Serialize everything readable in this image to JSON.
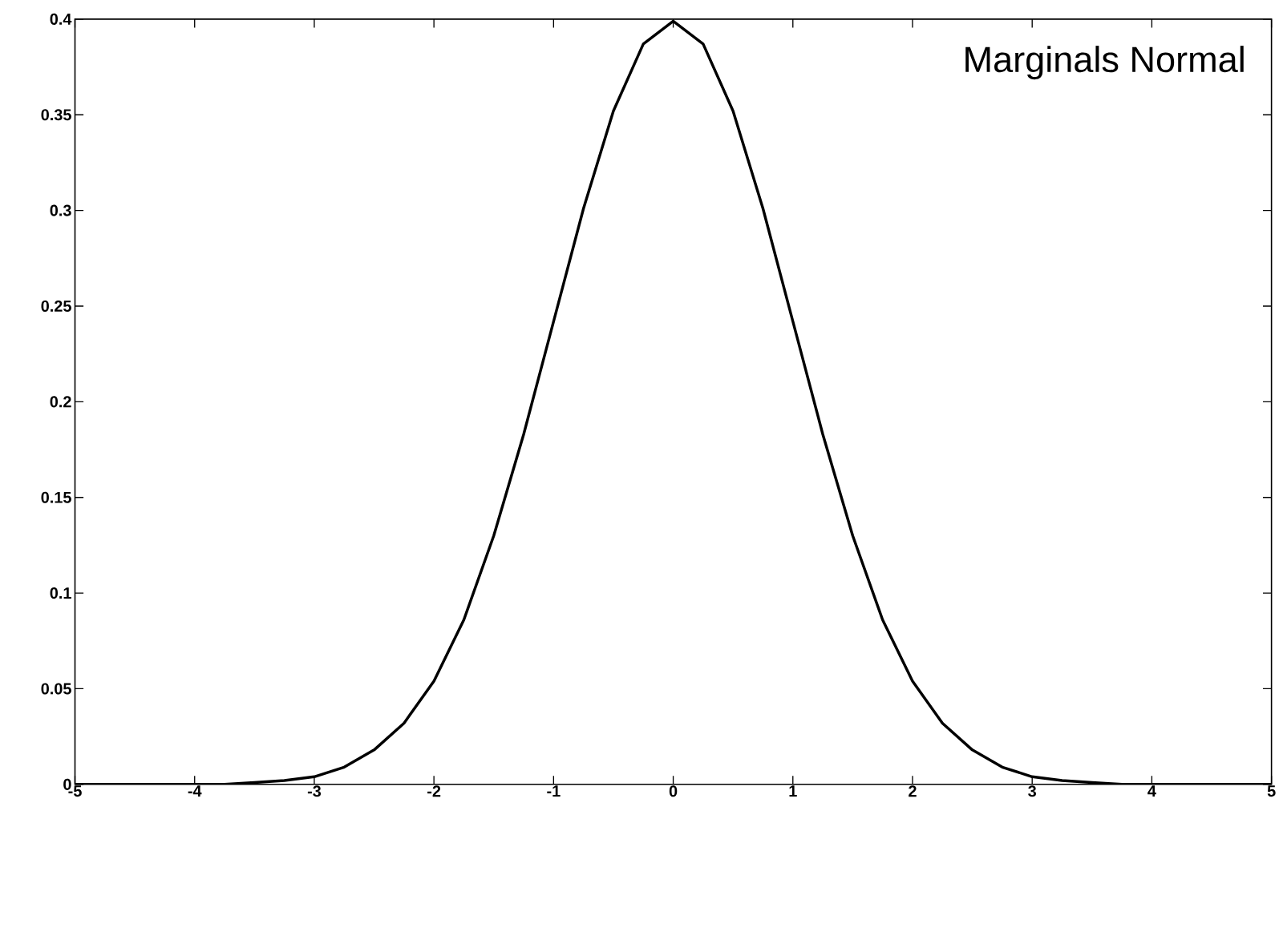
{
  "chart_data": {
    "type": "line",
    "x": [
      -5,
      -4.5,
      -4,
      -3.75,
      -3.5,
      -3.25,
      -3,
      -2.75,
      -2.5,
      -2.25,
      -2,
      -1.75,
      -1.5,
      -1.25,
      -1,
      -0.75,
      -0.5,
      -0.25,
      0,
      0.25,
      0.5,
      0.75,
      1,
      1.25,
      1.5,
      1.75,
      2,
      2.25,
      2.5,
      2.75,
      3,
      3.25,
      3.5,
      3.75,
      4,
      4.5,
      5
    ],
    "values": [
      0,
      0,
      0,
      0,
      0.001,
      0.002,
      0.004,
      0.009,
      0.018,
      0.032,
      0.054,
      0.086,
      0.13,
      0.183,
      0.242,
      0.301,
      0.352,
      0.387,
      0.399,
      0.387,
      0.352,
      0.301,
      0.242,
      0.183,
      0.13,
      0.086,
      0.054,
      0.032,
      0.018,
      0.009,
      0.004,
      0.002,
      0.001,
      0,
      0,
      0,
      0
    ],
    "color": "#000000",
    "line_style": "solid",
    "xlim": [
      -5,
      5
    ],
    "ylim": [
      0,
      0.4
    ],
    "xticks": [
      -5,
      -4,
      -3,
      -2,
      -1,
      0,
      1,
      2,
      3,
      4,
      5
    ],
    "yticks": [
      0,
      0.05,
      0.1,
      0.15,
      0.2,
      0.25,
      0.3,
      0.35,
      0.4
    ],
    "annotations": [
      "Marginals Normal"
    ]
  }
}
